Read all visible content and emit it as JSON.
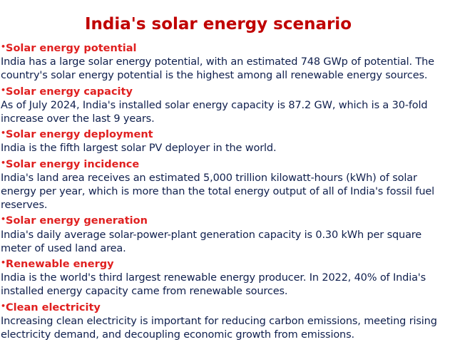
{
  "title": "India's solar energy scenario",
  "bullet_glyph": "•",
  "sections": [
    {
      "heading": "Solar energy potential",
      "body": "India has a large solar energy potential, with an estimated 748 GWp of potential. The country's solar energy potential is the highest among all renewable energy sources."
    },
    {
      "heading": "Solar energy capacity",
      "body": "As of July 2024, India's installed solar energy capacity is 87.2 GW, which is a 30-fold increase over the last 9 years."
    },
    {
      "heading": "Solar energy deployment",
      "body": "India is the fifth largest solar PV deployer in the world."
    },
    {
      "heading": "Solar energy incidence",
      "body": "India's land area receives an estimated 5,000 trillion kilowatt-hours (kWh) of solar energy per year, which is more than the total energy output of all of India's fossil fuel reserves."
    },
    {
      "heading": "Solar energy generation",
      "body": "India's daily average solar-power-plant generation capacity is 0.30 kWh per square meter of used land area."
    },
    {
      "heading": "Renewable energy",
      "body": "India is the world's third largest renewable energy producer. In 2022, 40% of India's installed energy capacity came from renewable sources."
    },
    {
      "heading": "Clean electricity",
      "body": "Increasing clean electricity is important for reducing carbon emissions, meeting rising electricity demand, and decoupling economic growth from emissions."
    }
  ],
  "colors": {
    "title": "#c00000",
    "heading": "#e02020",
    "body": "#0f1f4d",
    "background": "#ffffff"
  }
}
